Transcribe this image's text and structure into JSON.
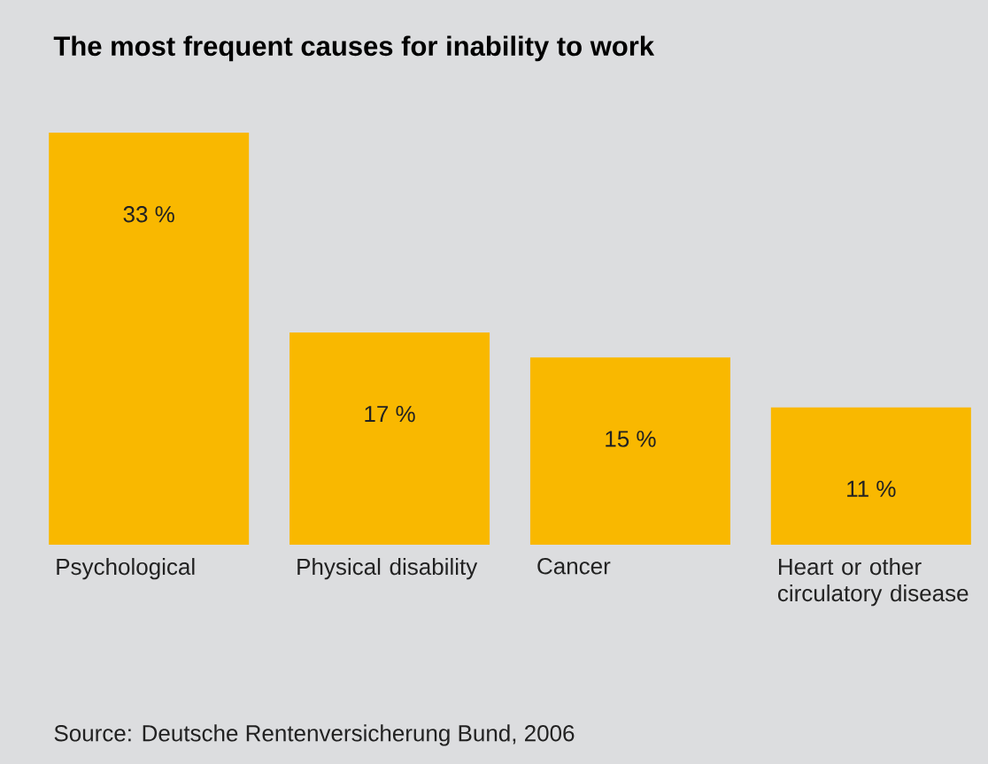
{
  "chart_data": {
    "type": "bar",
    "title": "The most frequent causes for inability to work",
    "categories": [
      "Psychological",
      "Physical disability",
      "Cancer",
      "Heart or other circulatory disease"
    ],
    "values": [
      33,
      17,
      15,
      11
    ],
    "value_labels": [
      "33 %",
      "17 %",
      "15 %",
      "11 %"
    ],
    "color": "#f9b800",
    "annotations": [
      "Source: Deutsche Rentenversicherung Bund, 2006"
    ]
  }
}
